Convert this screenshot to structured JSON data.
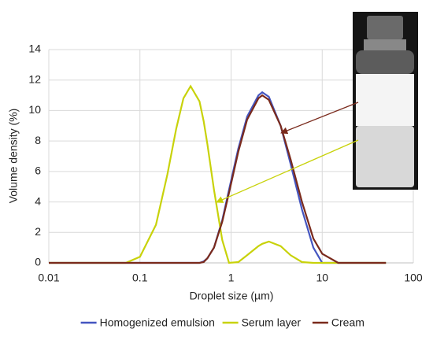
{
  "chart_data": {
    "type": "line",
    "xlabel": "Droplet size (µm)",
    "ylabel": "Volume density (%)",
    "xscale": "log",
    "xlim": [
      0.01,
      100
    ],
    "xticks": [
      0.01,
      0.1,
      1,
      10,
      100
    ],
    "ylim": [
      0,
      14
    ],
    "yticks": [
      0,
      2,
      4,
      6,
      8,
      10,
      12,
      14
    ],
    "grid": true,
    "legend": "bottom",
    "x": [
      0.01,
      0.05,
      0.07,
      0.1,
      0.15,
      0.2,
      0.25,
      0.3,
      0.36,
      0.45,
      0.5,
      0.55,
      0.65,
      0.8,
      0.95,
      1.2,
      1.5,
      2,
      2.2,
      2.6,
      3.5,
      4.5,
      6,
      8,
      10,
      15,
      20,
      50
    ],
    "series": [
      {
        "name": "Homogenized emulsion",
        "color": "#4455c0",
        "values": [
          0,
          0,
          0,
          0,
          0,
          0,
          0,
          0,
          0,
          0,
          0.1,
          0.3,
          1.0,
          2.8,
          4.8,
          7.5,
          9.6,
          11.0,
          11.2,
          10.9,
          9.0,
          6.5,
          3.5,
          1.0,
          0,
          0,
          0,
          0
        ]
      },
      {
        "name": "Serum layer",
        "color": "#c8d20a",
        "values": [
          0,
          0,
          0,
          0.4,
          2.5,
          5.8,
          8.8,
          10.8,
          11.6,
          10.6,
          9.3,
          7.8,
          4.8,
          1.5,
          0,
          0.05,
          0.5,
          1.1,
          1.25,
          1.4,
          1.1,
          0.5,
          0.05,
          0,
          0,
          0,
          0,
          0
        ]
      },
      {
        "name": "Cream",
        "color": "#7a2a1c",
        "values": [
          0,
          0,
          0,
          0,
          0,
          0,
          0,
          0,
          0,
          0,
          0.05,
          0.3,
          1.0,
          2.7,
          4.6,
          7.3,
          9.4,
          10.8,
          11.0,
          10.7,
          9.0,
          6.8,
          4.0,
          1.6,
          0.6,
          0,
          0,
          0
        ]
      }
    ]
  }
}
